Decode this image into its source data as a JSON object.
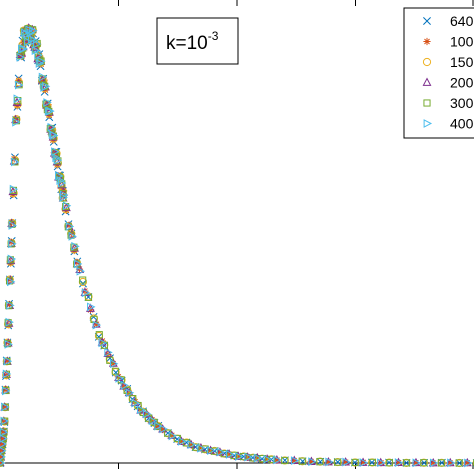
{
  "chart_data": {
    "type": "scatter",
    "title": "",
    "xlabel": "",
    "ylabel": "",
    "xlim": [
      0,
      12
    ],
    "ylim": [
      0,
      1
    ],
    "grid": false,
    "legend_position": "top-right",
    "annotation": {
      "base": "k=10",
      "exponent": "-3"
    },
    "series": [
      {
        "name": "640",
        "marker": "x",
        "color": "#0072BD"
      },
      {
        "name": "100",
        "marker": "asterisk",
        "color": "#D95319"
      },
      {
        "name": "150",
        "marker": "circle",
        "color": "#EDB120"
      },
      {
        "name": "200",
        "marker": "triangle-up",
        "color": "#7E2F8E"
      },
      {
        "name": "300",
        "marker": "square",
        "color": "#77AC30"
      },
      {
        "name": "400",
        "marker": "triangle-right",
        "color": "#4DBEEE"
      }
    ],
    "curve": {
      "x": [
        0.0,
        0.1,
        0.2,
        0.3,
        0.4,
        0.5,
        0.6,
        0.8,
        1.0,
        1.2,
        1.5,
        1.8,
        2.0,
        2.5,
        3.0,
        3.5,
        4.0,
        4.5,
        5.0,
        6.0,
        7.0,
        8.0,
        9.0,
        10.0,
        11.0,
        12.0
      ],
      "y": [
        0.0,
        0.08,
        0.28,
        0.55,
        0.78,
        0.93,
        0.99,
        1.0,
        0.94,
        0.83,
        0.67,
        0.53,
        0.45,
        0.3,
        0.2,
        0.13,
        0.085,
        0.055,
        0.036,
        0.016,
        0.007,
        0.003,
        0.0014,
        0.0007,
        0.0003,
        0.0001
      ]
    }
  }
}
